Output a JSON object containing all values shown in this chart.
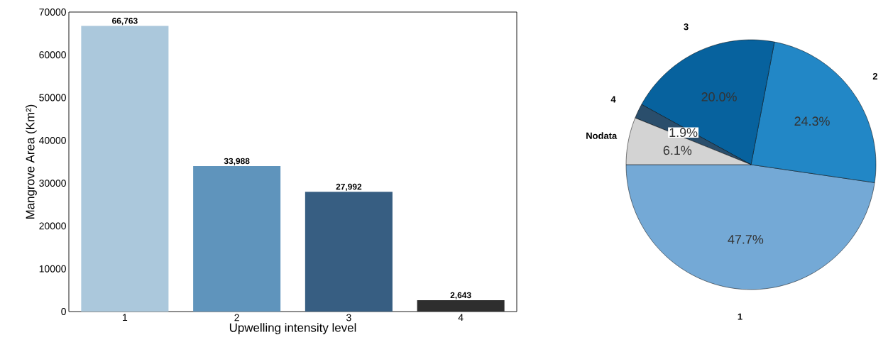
{
  "chart_data": [
    {
      "type": "bar",
      "categories": [
        "1",
        "2",
        "3",
        "4"
      ],
      "values": [
        66763,
        33988,
        27992,
        2643
      ],
      "colors": [
        "#abc8dc",
        "#5f94bc",
        "#375e82",
        "#2e2e2e"
      ],
      "value_labels": [
        "66,763",
        "33,988",
        "27,992",
        "2,643"
      ],
      "xlabel": "Upwelling intensity level",
      "ylabel": "Mangrove Area (Km²)",
      "ylim": [
        0,
        70000
      ],
      "yticks": [
        0,
        10000,
        20000,
        30000,
        40000,
        50000,
        60000,
        70000
      ]
    },
    {
      "type": "pie",
      "categories": [
        "1",
        "2",
        "3",
        "4",
        "Nodata"
      ],
      "values": [
        47.7,
        24.3,
        20.0,
        1.9,
        6.1
      ],
      "colors": [
        "#74a9d6",
        "#2287c6",
        "#07629e",
        "#2a4e6c",
        "#d3d3d3"
      ],
      "value_labels": [
        "47.7%",
        "24.3%",
        "20.0%",
        "1.9%",
        "6.1%"
      ]
    }
  ]
}
